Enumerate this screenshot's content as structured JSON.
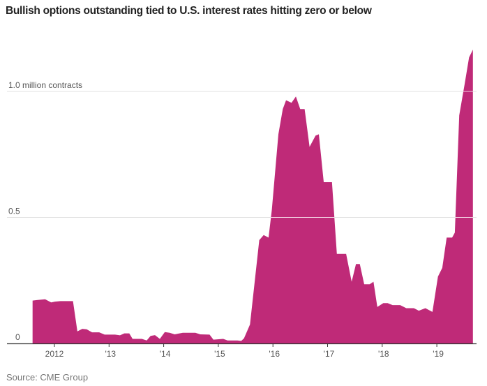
{
  "chart_data": {
    "type": "area",
    "title": "Bullish options outstanding tied to U.S. interest rates hitting zero or below",
    "source": "Source: CME Group",
    "color": "#bf2a78",
    "ylabel": "",
    "xlabel": "",
    "ylim": [
      0,
      1.2
    ],
    "xlim": [
      2011.4,
      2019.75
    ],
    "y_ticks": [
      {
        "value": 0,
        "label": "0"
      },
      {
        "value": 0.5,
        "label": "0.5"
      },
      {
        "value": 1.0,
        "label": "1.0 million contracts"
      }
    ],
    "x_ticks": [
      {
        "value": 2012,
        "label": "2012"
      },
      {
        "value": 2013,
        "label": "'13"
      },
      {
        "value": 2014,
        "label": "'14"
      },
      {
        "value": 2015,
        "label": "'15"
      },
      {
        "value": 2016,
        "label": "'16"
      },
      {
        "value": 2017,
        "label": "'17"
      },
      {
        "value": 2018,
        "label": "'18"
      },
      {
        "value": 2019,
        "label": "'19"
      }
    ],
    "grid": true,
    "x": [
      2011.6,
      2011.68,
      2011.83,
      2011.94,
      2012.01,
      2012.11,
      2012.34,
      2012.42,
      2012.51,
      2012.59,
      2012.69,
      2012.82,
      2012.92,
      2013.11,
      2013.2,
      2013.28,
      2013.37,
      2013.43,
      2013.6,
      2013.69,
      2013.76,
      2013.84,
      2013.93,
      2014.02,
      2014.11,
      2014.2,
      2014.35,
      2014.58,
      2014.67,
      2014.84,
      2014.91,
      2015.09,
      2015.17,
      2015.35,
      2015.42,
      2015.47,
      2015.58,
      2015.75,
      2015.83,
      2015.92,
      2015.98,
      2016.1,
      2016.18,
      2016.24,
      2016.34,
      2016.42,
      2016.5,
      2016.58,
      2016.67,
      2016.78,
      2016.84,
      2016.93,
      2017.08,
      2017.17,
      2017.34,
      2017.44,
      2017.52,
      2017.59,
      2017.67,
      2017.77,
      2017.84,
      2017.91,
      2018.02,
      2018.1,
      2018.19,
      2018.33,
      2018.44,
      2018.58,
      2018.67,
      2018.79,
      2018.92,
      2019.02,
      2019.1,
      2019.18,
      2019.28,
      2019.33,
      2019.41,
      2019.51,
      2019.59,
      2019.66
    ],
    "values": [
      0.17,
      0.172,
      0.175,
      0.163,
      0.166,
      0.168,
      0.168,
      0.048,
      0.058,
      0.056,
      0.044,
      0.044,
      0.035,
      0.035,
      0.032,
      0.04,
      0.04,
      0.018,
      0.018,
      0.012,
      0.03,
      0.033,
      0.018,
      0.045,
      0.042,
      0.036,
      0.042,
      0.042,
      0.036,
      0.035,
      0.015,
      0.018,
      0.012,
      0.012,
      0.01,
      0.02,
      0.075,
      0.41,
      0.43,
      0.42,
      0.53,
      0.83,
      0.93,
      0.965,
      0.955,
      0.98,
      0.93,
      0.93,
      0.78,
      0.825,
      0.83,
      0.64,
      0.64,
      0.355,
      0.355,
      0.245,
      0.315,
      0.315,
      0.235,
      0.235,
      0.245,
      0.145,
      0.16,
      0.16,
      0.152,
      0.152,
      0.14,
      0.14,
      0.13,
      0.14,
      0.125,
      0.265,
      0.3,
      0.42,
      0.42,
      0.44,
      0.905,
      1.03,
      1.135,
      1.166
    ]
  }
}
